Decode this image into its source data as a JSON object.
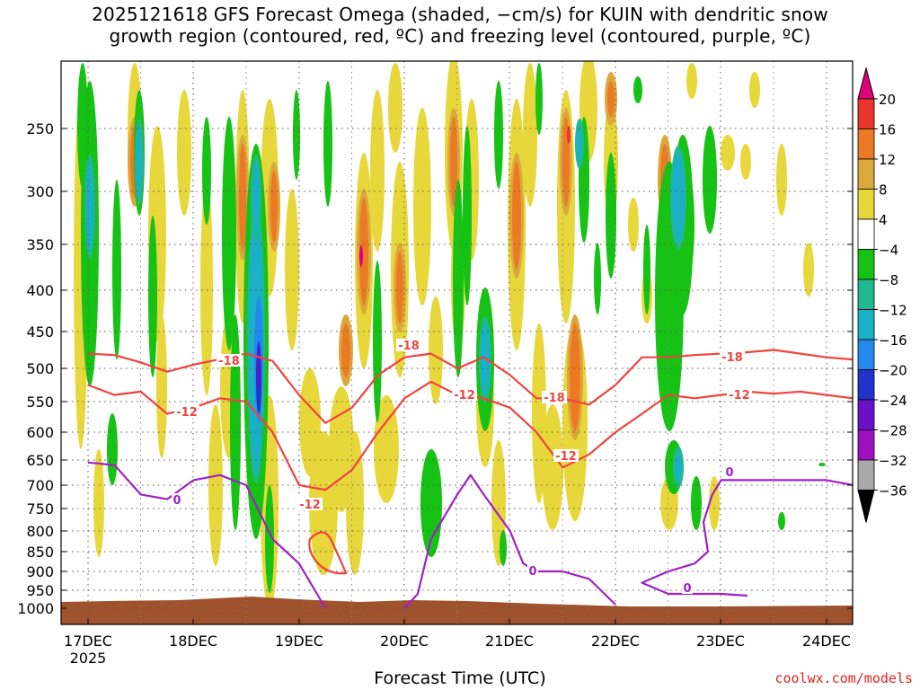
{
  "title_line1": "2025121618 GFS Forecast Omega (shaded, −cm/s) for KUIN with dendritic snow",
  "title_line2": "growth region (contoured, red, ºC) and freezing level (contoured, purple, ºC)",
  "credit": "coolwx.com/models",
  "chart_data": {
    "type": "heatmap",
    "xlabel": "Forecast Time (UTC)",
    "ylabel": "",
    "x_tick_labels": [
      "17DEC",
      "18DEC",
      "19DEC",
      "20DEC",
      "21DEC",
      "22DEC",
      "23DEC",
      "24DEC"
    ],
    "x_tick_sublabel": "2025",
    "y_tick_labels": [
      "250",
      "300",
      "350",
      "400",
      "450",
      "500",
      "550",
      "600",
      "650",
      "700",
      "750",
      "800",
      "850",
      "900",
      "950",
      "1000"
    ],
    "y_ticks_hpa": [
      250,
      300,
      350,
      400,
      450,
      500,
      550,
      600,
      650,
      700,
      750,
      800,
      850,
      900,
      950,
      1000
    ],
    "colorbar_labels": [
      "20",
      "16",
      "12",
      "8",
      "4",
      "−4",
      "−8",
      "−12",
      "−16",
      "−20",
      "−24",
      "−28",
      "−32",
      "−36"
    ],
    "colorbar_colors": [
      "#e0007b",
      "#e8362c",
      "#ec7a24",
      "#dca83c",
      "#e8d73a",
      "#ffffff",
      "#16c214",
      "#1fb88f",
      "#19b0c8",
      "#2288ec",
      "#2233cc",
      "#6a10c8",
      "#a010c0",
      "#a8a8a8",
      "#000000"
    ],
    "contour_labels": {
      "dgz_upper": [
        {
          "label": "-18",
          "time": "18DEC ~12Z"
        },
        {
          "label": "-18",
          "time": "19DEC ~21Z"
        },
        {
          "label": "-18",
          "time": "21DEC ~09Z"
        },
        {
          "label": "-18",
          "time": "23DEC ~03Z"
        }
      ],
      "dgz_lower": [
        {
          "label": "-12",
          "time": "17DEC ~21Z"
        },
        {
          "label": "-12",
          "time": "19DEC ~03Z"
        },
        {
          "label": "-12",
          "time": "20DEC ~15Z"
        },
        {
          "label": "-12",
          "time": "21DEC ~12Z"
        },
        {
          "label": "-12",
          "time": "23DEC ~03Z"
        }
      ],
      "freezing_level": [
        {
          "label": "0",
          "time": "17DEC ~21Z"
        },
        {
          "label": "0",
          "time": "21DEC ~06Z"
        },
        {
          "label": "0",
          "time": "22DEC ~21Z"
        },
        {
          "label": "0",
          "time": "23DEC ~00Z"
        }
      ]
    },
    "series": [
      {
        "name": "-18",
        "color": "#f0433f",
        "points": [
          [
            "17DEC00",
            480
          ],
          [
            "17DEC06",
            482
          ],
          [
            "17DEC12",
            492
          ],
          [
            "17DEC18",
            505
          ],
          [
            "18DEC00",
            495
          ],
          [
            "18DEC12",
            480
          ],
          [
            "18DEC18",
            490
          ],
          [
            "19DEC00",
            540
          ],
          [
            "19DEC06",
            585
          ],
          [
            "19DEC12",
            560
          ],
          [
            "19DEC18",
            510
          ],
          [
            "20DEC00",
            485
          ],
          [
            "20DEC06",
            480
          ],
          [
            "20DEC12",
            500
          ],
          [
            "20DEC18",
            485
          ],
          [
            "21DEC00",
            510
          ],
          [
            "21DEC06",
            545
          ],
          [
            "21DEC12",
            545
          ],
          [
            "21DEC18",
            555
          ],
          [
            "22DEC00",
            525
          ],
          [
            "22DEC06",
            485
          ],
          [
            "22DEC12",
            485
          ],
          [
            "22DEC18",
            482
          ],
          [
            "23DEC00",
            480
          ],
          [
            "23DEC06",
            478
          ],
          [
            "23DEC12",
            475
          ],
          [
            "23DEC18",
            480
          ],
          [
            "24DEC00",
            485
          ],
          [
            "24DEC06",
            488
          ]
        ]
      },
      {
        "name": "-12",
        "color": "#f0433f",
        "points": [
          [
            "17DEC00",
            525
          ],
          [
            "17DEC06",
            540
          ],
          [
            "17DEC12",
            535
          ],
          [
            "17DEC18",
            570
          ],
          [
            "18DEC00",
            560
          ],
          [
            "18DEC06",
            545
          ],
          [
            "18DEC12",
            550
          ],
          [
            "18DEC18",
            600
          ],
          [
            "19DEC00",
            700
          ],
          [
            "19DEC06",
            710
          ],
          [
            "19DEC12",
            670
          ],
          [
            "19DEC18",
            600
          ],
          [
            "20DEC00",
            545
          ],
          [
            "20DEC06",
            520
          ],
          [
            "20DEC12",
            540
          ],
          [
            "20DEC18",
            545
          ],
          [
            "21DEC00",
            560
          ],
          [
            "21DEC06",
            600
          ],
          [
            "21DEC12",
            665
          ],
          [
            "21DEC18",
            640
          ],
          [
            "22DEC00",
            600
          ],
          [
            "22DEC06",
            570
          ],
          [
            "22DEC12",
            540
          ],
          [
            "22DEC18",
            545
          ],
          [
            "23DEC00",
            540
          ],
          [
            "23DEC06",
            535
          ],
          [
            "23DEC12",
            538
          ],
          [
            "23DEC18",
            535
          ],
          [
            "24DEC00",
            540
          ],
          [
            "24DEC06",
            545
          ]
        ]
      },
      {
        "name": "0",
        "color": "#a020c8",
        "points": [
          [
            "17DEC00",
            655
          ],
          [
            "17DEC06",
            660
          ],
          [
            "17DEC12",
            720
          ],
          [
            "17DEC18",
            730
          ],
          [
            "18DEC00",
            690
          ],
          [
            "18DEC06",
            680
          ],
          [
            "18DEC12",
            700
          ],
          [
            "18DEC18",
            820
          ],
          [
            "19DEC00",
            880
          ],
          [
            "19DEC06",
            1000
          ]
        ]
      },
      {
        "name": "0",
        "color": "#a020c8",
        "points": [
          [
            "20DEC00",
            1000
          ],
          [
            "20DEC03",
            960
          ],
          [
            "20DEC06",
            820
          ],
          [
            "20DEC12",
            720
          ],
          [
            "20DEC15",
            680
          ],
          [
            "20DEC18",
            720
          ],
          [
            "21DEC00",
            800
          ],
          [
            "21DEC03",
            880
          ],
          [
            "21DEC06",
            900
          ],
          [
            "21DEC12",
            900
          ],
          [
            "21DEC18",
            920
          ],
          [
            "22DEC00",
            990
          ]
        ]
      },
      {
        "name": "0",
        "color": "#a020c8",
        "points": [
          [
            "24DEC06",
            700
          ],
          [
            "24DEC00",
            690
          ],
          [
            "23DEC12",
            690
          ],
          [
            "23DEC00",
            690
          ],
          [
            "22DEC22",
            720
          ],
          [
            "22DEC20",
            780
          ],
          [
            "22DEC21",
            850
          ],
          [
            "22DEC18",
            880
          ],
          [
            "22DEC12",
            900
          ],
          [
            "22DEC06",
            930
          ],
          [
            "22DEC12",
            960
          ],
          [
            "23DEC00",
            960
          ],
          [
            "23DEC06",
            965
          ]
        ]
      }
    ]
  }
}
